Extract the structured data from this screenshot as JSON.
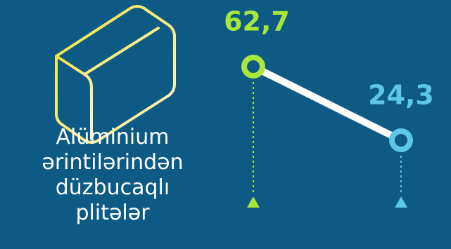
{
  "chart_data": {
    "type": "line",
    "title": "Alüminium ərintilərindən düzbucaqlı plitələr",
    "values": [
      62.7,
      24.3
    ],
    "value_labels": [
      "62,7",
      "24,3"
    ],
    "colors": [
      "#a8e63a",
      "#5ec6e8"
    ],
    "line_color": "#ffffff"
  }
}
